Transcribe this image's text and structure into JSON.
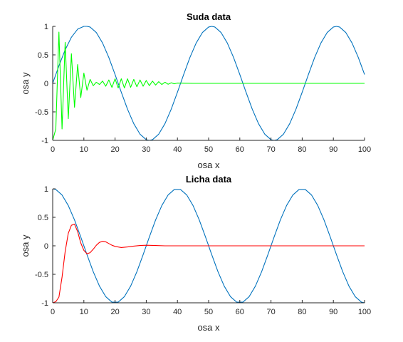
{
  "chart_data": [
    {
      "type": "line",
      "title": "Suda data",
      "xlabel": "osa x",
      "ylabel": "osa y",
      "xlim": [
        0,
        100
      ],
      "ylim": [
        -1,
        1
      ],
      "xticks": [
        0,
        10,
        20,
        30,
        40,
        50,
        60,
        70,
        80,
        90,
        100
      ],
      "yticks": [
        -1,
        -0.5,
        0,
        0.5,
        1
      ],
      "xtick_labels": [
        "0",
        "10",
        "20",
        "30",
        "40",
        "50",
        "60",
        "70",
        "80",
        "90",
        "100"
      ],
      "ytick_labels": [
        "-1",
        "-0.5",
        "0",
        "0.5",
        "1"
      ],
      "grid": false,
      "series": [
        {
          "color": "#0072BD",
          "description": "sine wave, period 40, amplitude 1",
          "x": [
            0,
            2,
            4,
            6,
            8,
            10,
            11,
            12,
            14,
            16,
            18,
            20,
            22,
            24,
            26,
            28,
            30,
            31,
            32,
            34,
            36,
            38,
            40,
            42,
            44,
            46,
            48,
            50,
            51,
            52,
            54,
            56,
            58,
            60,
            62,
            64,
            66,
            68,
            70,
            71,
            72,
            74,
            76,
            78,
            80,
            82,
            84,
            86,
            88,
            90,
            91,
            92,
            94,
            96,
            98,
            100
          ],
          "y": [
            0,
            0.309,
            0.588,
            0.809,
            0.951,
            1.0,
            1.0,
            0.988,
            0.891,
            0.707,
            0.454,
            0.156,
            -0.156,
            -0.454,
            -0.707,
            -0.891,
            -0.988,
            -1.0,
            -0.988,
            -0.891,
            -0.707,
            -0.454,
            -0.156,
            0.156,
            0.454,
            0.707,
            0.891,
            0.988,
            1.0,
            0.988,
            0.891,
            0.707,
            0.454,
            0.156,
            -0.156,
            -0.454,
            -0.707,
            -0.891,
            -0.988,
            -1.0,
            -0.988,
            -0.891,
            -0.707,
            -0.454,
            -0.156,
            0.156,
            0.454,
            0.707,
            0.891,
            0.988,
            1.0,
            0.988,
            0.891,
            0.707,
            0.454,
            0.156
          ]
        },
        {
          "color": "#00FF00",
          "description": "damped oscillation sampled at integer x",
          "x": [
            0,
            1,
            2,
            3,
            4,
            5,
            6,
            7,
            8,
            9,
            10,
            11,
            12,
            13,
            14,
            15,
            16,
            17,
            18,
            19,
            20,
            21,
            22,
            23,
            24,
            25,
            26,
            27,
            28,
            29,
            30,
            31,
            32,
            33,
            34,
            35,
            36,
            37,
            38,
            39,
            40,
            42,
            45,
            50,
            60,
            70,
            80,
            90,
            100
          ],
          "y": [
            -1.0,
            -0.8,
            0.9,
            -0.8,
            0.72,
            -0.62,
            0.52,
            -0.42,
            0.33,
            -0.25,
            0.18,
            -0.12,
            0.07,
            -0.04,
            0.02,
            -0.02,
            0.04,
            -0.05,
            0.06,
            -0.07,
            0.08,
            -0.08,
            0.08,
            -0.08,
            0.08,
            -0.07,
            0.07,
            -0.06,
            0.06,
            -0.05,
            0.05,
            -0.04,
            0.04,
            -0.03,
            0.03,
            -0.02,
            0.02,
            -0.015,
            0.01,
            -0.008,
            0.005,
            0.002,
            0,
            0,
            0,
            0,
            0,
            0,
            0
          ]
        }
      ]
    },
    {
      "type": "line",
      "title": "Licha data",
      "xlabel": "osa x",
      "ylabel": "osa y",
      "xlim": [
        0,
        100
      ],
      "ylim": [
        -1,
        1
      ],
      "xticks": [
        0,
        10,
        20,
        30,
        40,
        50,
        60,
        70,
        80,
        90,
        100
      ],
      "yticks": [
        -1,
        -0.5,
        0,
        0.5,
        1
      ],
      "xtick_labels": [
        "0",
        "10",
        "20",
        "30",
        "40",
        "50",
        "60",
        "70",
        "80",
        "90",
        "100"
      ],
      "ytick_labels": [
        "-1",
        "-0.5",
        "0",
        "0.5",
        "1"
      ],
      "grid": false,
      "series": [
        {
          "color": "#0072BD",
          "description": "cosine wave, period 40, amplitude 1",
          "x": [
            0,
            1,
            3,
            5,
            7,
            9,
            11,
            13,
            15,
            17,
            19,
            21,
            23,
            25,
            27,
            29,
            31,
            33,
            35,
            37,
            39,
            41,
            43,
            45,
            47,
            49,
            51,
            53,
            55,
            57,
            59,
            61,
            63,
            65,
            67,
            69,
            71,
            73,
            75,
            77,
            79,
            81,
            83,
            85,
            87,
            89,
            91,
            93,
            95,
            97,
            99,
            100
          ],
          "y": [
            1.0,
            0.988,
            0.891,
            0.707,
            0.454,
            0.156,
            -0.156,
            -0.454,
            -0.707,
            -0.891,
            -0.988,
            -0.988,
            -0.891,
            -0.707,
            -0.454,
            -0.156,
            0.156,
            0.454,
            0.707,
            0.891,
            0.988,
            0.988,
            0.891,
            0.707,
            0.454,
            0.156,
            -0.156,
            -0.454,
            -0.707,
            -0.891,
            -0.988,
            -0.988,
            -0.891,
            -0.707,
            -0.454,
            -0.156,
            0.156,
            0.454,
            0.707,
            0.891,
            0.988,
            0.988,
            0.891,
            0.707,
            0.454,
            0.156,
            -0.156,
            -0.454,
            -0.707,
            -0.891,
            -0.988,
            -1.0
          ]
        },
        {
          "color": "#FF0000",
          "description": "damped oscillation",
          "x": [
            0,
            1,
            2,
            3,
            4,
            5,
            6,
            7,
            8,
            9,
            10,
            11,
            12,
            13,
            14,
            15,
            16,
            17,
            18,
            19,
            20,
            22,
            24,
            26,
            28,
            30,
            33,
            36,
            40,
            50,
            60,
            70,
            80,
            90,
            100
          ],
          "y": [
            -1.0,
            -0.98,
            -0.9,
            -0.55,
            -0.1,
            0.22,
            0.36,
            0.38,
            0.25,
            0.05,
            -0.08,
            -0.14,
            -0.12,
            -0.06,
            0.01,
            0.06,
            0.08,
            0.07,
            0.04,
            0.01,
            -0.01,
            -0.03,
            -0.02,
            -0.005,
            0.005,
            0.01,
            0.005,
            0,
            0,
            0,
            0,
            0,
            0,
            0,
            0
          ]
        }
      ]
    }
  ]
}
